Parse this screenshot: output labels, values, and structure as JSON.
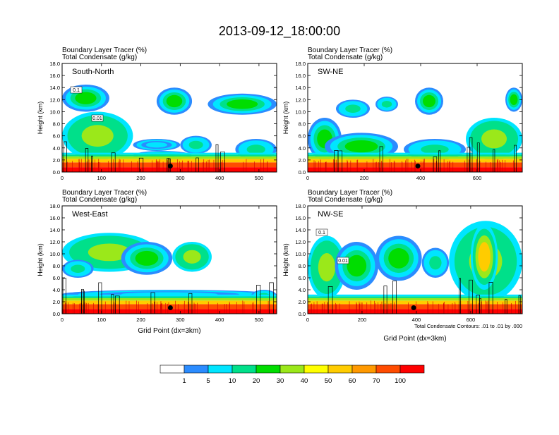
{
  "figure_title": "2013-09-12_18:00:00",
  "panel_header": {
    "line1": "Boundary Layer Tracer    (%)",
    "line2": "Total Condensate    (g/kg)"
  },
  "chart_data": [
    {
      "type": "heatmap",
      "title": "South-North",
      "ylabel": "Height (km)",
      "xlabel": "",
      "x_ticks": [
        "0",
        "100",
        "200",
        "300",
        "400",
        "500"
      ],
      "y_ticks": [
        "0.0",
        "2.0",
        "4.0",
        "6.0",
        "8.0",
        "10.0",
        "12.0",
        "14.0",
        "16.0",
        "18.0"
      ],
      "xlim": [
        0,
        545
      ],
      "ylim": [
        0,
        18
      ],
      "marker": {
        "x": 275,
        "y": 1.0
      },
      "contour_labels": [
        "0.1",
        "0.01"
      ],
      "tracer_patches": [
        {
          "x0": 0,
          "x1": 180,
          "y0": 2.0,
          "y1": 10.0,
          "level": 30
        },
        {
          "x0": 0,
          "x1": 120,
          "y0": 10.0,
          "y1": 14.5,
          "level": 20
        },
        {
          "x0": 180,
          "x1": 330,
          "y0": 2.0,
          "y1": 3.5,
          "level": 20
        },
        {
          "x0": 180,
          "x1": 300,
          "y0": 3.5,
          "y1": 5.5,
          "level": 5
        },
        {
          "x0": 240,
          "x1": 330,
          "y0": 9.5,
          "y1": 14.0,
          "level": 20
        },
        {
          "x0": 300,
          "x1": 380,
          "y0": 3.0,
          "y1": 6.0,
          "level": 10
        },
        {
          "x0": 370,
          "x1": 545,
          "y0": 9.5,
          "y1": 13.0,
          "level": 20
        },
        {
          "x0": 440,
          "x1": 545,
          "y0": 2.0,
          "y1": 5.5,
          "level": 10
        }
      ]
    },
    {
      "type": "heatmap",
      "title": "SW-NE",
      "ylabel": "Height (km)",
      "xlabel": "",
      "x_ticks": [
        "0",
        "200",
        "400",
        "600"
      ],
      "y_ticks": [
        "0.0",
        "2.0",
        "4.0",
        "6.0",
        "8.0",
        "10.0",
        "12.0",
        "14.0",
        "16.0",
        "18.0"
      ],
      "xlim": [
        0,
        760
      ],
      "ylim": [
        0,
        18
      ],
      "marker": {
        "x": 390,
        "y": 1.0
      },
      "contour_labels": [],
      "tracer_patches": [
        {
          "x0": 0,
          "x1": 120,
          "y0": 2.0,
          "y1": 9.0,
          "level": 20
        },
        {
          "x0": 60,
          "x1": 320,
          "y0": 2.0,
          "y1": 6.5,
          "level": 20
        },
        {
          "x0": 100,
          "x1": 220,
          "y0": 9.0,
          "y1": 12.0,
          "level": 10
        },
        {
          "x0": 240,
          "x1": 320,
          "y0": 10.0,
          "y1": 12.5,
          "level": 10
        },
        {
          "x0": 340,
          "x1": 560,
          "y0": 2.0,
          "y1": 5.5,
          "level": 10
        },
        {
          "x0": 380,
          "x1": 480,
          "y0": 9.5,
          "y1": 14.0,
          "level": 20
        },
        {
          "x0": 560,
          "x1": 760,
          "y0": 2.0,
          "y1": 9.0,
          "level": 30
        },
        {
          "x0": 700,
          "x1": 760,
          "y0": 10.0,
          "y1": 14.0,
          "level": 20
        }
      ]
    },
    {
      "type": "heatmap",
      "title": "West-East",
      "ylabel": "Height (km)",
      "xlabel": "Grid Point (dx=3km)",
      "x_ticks": [
        "0",
        "100",
        "200",
        "300",
        "400",
        "500"
      ],
      "y_ticks": [
        "0.0",
        "2.0",
        "4.0",
        "6.0",
        "8.0",
        "10.0",
        "12.0",
        "14.0",
        "16.0",
        "18.0"
      ],
      "xlim": [
        0,
        545
      ],
      "ylim": [
        0,
        18
      ],
      "marker": {
        "x": 275,
        "y": 1.0
      },
      "contour_labels": [],
      "tracer_patches": [
        {
          "x0": 0,
          "x1": 240,
          "y0": 7.0,
          "y1": 13.5,
          "level": 30
        },
        {
          "x0": 0,
          "x1": 80,
          "y0": 6.0,
          "y1": 9.0,
          "level": 10
        },
        {
          "x0": 150,
          "x1": 280,
          "y0": 6.5,
          "y1": 12.0,
          "level": 20
        },
        {
          "x0": 280,
          "x1": 380,
          "y0": 7.0,
          "y1": 12.0,
          "level": 30
        },
        {
          "x0": 0,
          "x1": 545,
          "y0": 2.5,
          "y1": 4.0,
          "level": 5
        },
        {
          "x0": 480,
          "x1": 545,
          "y0": 2.0,
          "y1": 4.0,
          "level": 10
        }
      ]
    },
    {
      "type": "heatmap",
      "title": "NW-SE",
      "ylabel": "Height (km)",
      "xlabel": "Grid Point (dx=3km)",
      "x_ticks": [
        "0",
        "200",
        "400",
        "600"
      ],
      "y_ticks": [
        "0.0",
        "2.0",
        "4.0",
        "6.0",
        "8.0",
        "10.0",
        "12.0",
        "14.0",
        "16.0",
        "18.0"
      ],
      "xlim": [
        0,
        790
      ],
      "ylim": [
        0,
        18
      ],
      "marker": {
        "x": 390,
        "y": 1.0
      },
      "contour_labels": [
        "0.1",
        "0.01"
      ],
      "footnote": "Total Condensate Contours: .01 to .01 by .000",
      "tracer_patches": [
        {
          "x0": 0,
          "x1": 140,
          "y0": 2.5,
          "y1": 13.0,
          "level": 30
        },
        {
          "x0": 100,
          "x1": 260,
          "y0": 4.0,
          "y1": 12.0,
          "level": 20
        },
        {
          "x0": 250,
          "x1": 420,
          "y0": 5.5,
          "y1": 13.0,
          "level": 20
        },
        {
          "x0": 420,
          "x1": 520,
          "y0": 6.0,
          "y1": 11.0,
          "level": 10
        },
        {
          "x0": 520,
          "x1": 790,
          "y0": 2.0,
          "y1": 15.5,
          "level": 30
        },
        {
          "x0": 600,
          "x1": 700,
          "y0": 4.0,
          "y1": 15.0,
          "level": 50
        }
      ]
    }
  ],
  "colorbar": {
    "levels": [
      "1",
      "5",
      "10",
      "20",
      "30",
      "40",
      "50",
      "60",
      "70",
      "100"
    ],
    "colors": [
      "#ffffff",
      "#2b8cff",
      "#00e5ff",
      "#00e08a",
      "#00dd00",
      "#9be81a",
      "#ffff00",
      "#ffcc00",
      "#ff9900",
      "#ff4c00",
      "#ff0000"
    ]
  }
}
